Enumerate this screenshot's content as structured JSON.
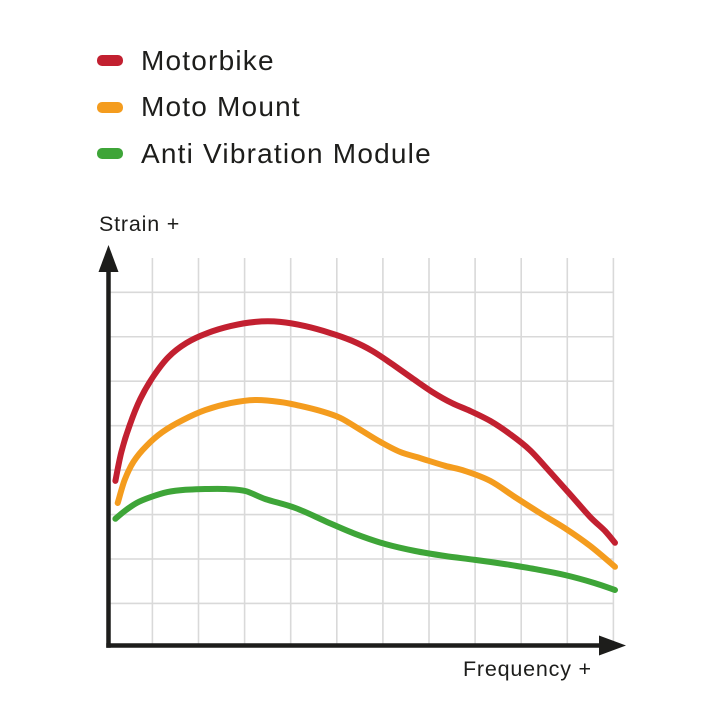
{
  "page": {
    "background": "#ffffff"
  },
  "legend": {
    "items": [
      {
        "label": "Motorbike",
        "color": "#c22030"
      },
      {
        "label": "Moto Mount",
        "color": "#f49c1e"
      },
      {
        "label": "Anti Vibration Module",
        "color": "#3ea538"
      }
    ]
  },
  "chart_data": {
    "type": "line",
    "title": "",
    "xlabel": "Frequency +",
    "ylabel": "Strain +",
    "x_range": [
      0,
      11
    ],
    "y_range": [
      0,
      100
    ],
    "grid": true,
    "legend_position": "top-left",
    "grid_color": "#d9d9d9",
    "axis_color": "#1d1d1b",
    "series": [
      {
        "name": "Motorbike",
        "color": "#c22030",
        "points": [
          [
            0.15,
            42.4
          ],
          [
            0.28,
            49.9
          ],
          [
            0.46,
            56.8
          ],
          [
            0.69,
            63.6
          ],
          [
            0.98,
            69.5
          ],
          [
            1.3,
            74.4
          ],
          [
            1.69,
            78.0
          ],
          [
            2.15,
            80.6
          ],
          [
            2.65,
            82.4
          ],
          [
            3.19,
            83.5
          ],
          [
            3.73,
            83.5
          ],
          [
            4.27,
            82.4
          ],
          [
            4.82,
            80.6
          ],
          [
            5.29,
            78.6
          ],
          [
            5.73,
            76.0
          ],
          [
            6.16,
            72.6
          ],
          [
            6.59,
            69.0
          ],
          [
            7.03,
            65.4
          ],
          [
            7.46,
            62.5
          ],
          [
            7.85,
            60.5
          ],
          [
            8.29,
            57.9
          ],
          [
            8.72,
            54.5
          ],
          [
            9.15,
            50.4
          ],
          [
            9.59,
            44.7
          ],
          [
            10.02,
            39.0
          ],
          [
            10.46,
            33.1
          ],
          [
            10.78,
            29.5
          ],
          [
            11.0,
            26.4
          ]
        ]
      },
      {
        "name": "Moto Mount",
        "color": "#f49c1e",
        "points": [
          [
            0.2,
            36.7
          ],
          [
            0.35,
            42.6
          ],
          [
            0.54,
            47.3
          ],
          [
            0.82,
            51.4
          ],
          [
            1.17,
            55.0
          ],
          [
            1.61,
            58.1
          ],
          [
            2.1,
            60.7
          ],
          [
            2.65,
            62.5
          ],
          [
            3.19,
            63.3
          ],
          [
            3.73,
            62.8
          ],
          [
            4.16,
            61.8
          ],
          [
            4.6,
            60.5
          ],
          [
            5.03,
            58.7
          ],
          [
            5.47,
            55.6
          ],
          [
            5.9,
            52.5
          ],
          [
            6.33,
            49.9
          ],
          [
            6.77,
            48.3
          ],
          [
            7.31,
            46.3
          ],
          [
            7.74,
            45.0
          ],
          [
            8.29,
            42.4
          ],
          [
            8.83,
            38.2
          ],
          [
            9.37,
            34.1
          ],
          [
            9.91,
            30.2
          ],
          [
            10.46,
            25.6
          ],
          [
            11.0,
            20.2
          ]
        ]
      },
      {
        "name": "Anti Vibration Module",
        "color": "#3ea538",
        "points": [
          [
            0.15,
            32.6
          ],
          [
            0.35,
            34.6
          ],
          [
            0.61,
            36.7
          ],
          [
            0.91,
            38.2
          ],
          [
            1.28,
            39.5
          ],
          [
            1.67,
            40.1
          ],
          [
            2.1,
            40.3
          ],
          [
            2.54,
            40.3
          ],
          [
            2.97,
            39.8
          ],
          [
            3.41,
            37.7
          ],
          [
            4.06,
            35.4
          ],
          [
            4.71,
            32.0
          ],
          [
            5.36,
            28.7
          ],
          [
            6.01,
            26.1
          ],
          [
            6.66,
            24.3
          ],
          [
            7.31,
            23.0
          ],
          [
            7.96,
            22.0
          ],
          [
            8.61,
            20.9
          ],
          [
            9.26,
            19.6
          ],
          [
            9.91,
            18.1
          ],
          [
            10.56,
            16.0
          ],
          [
            11.0,
            14.2
          ]
        ]
      }
    ]
  }
}
